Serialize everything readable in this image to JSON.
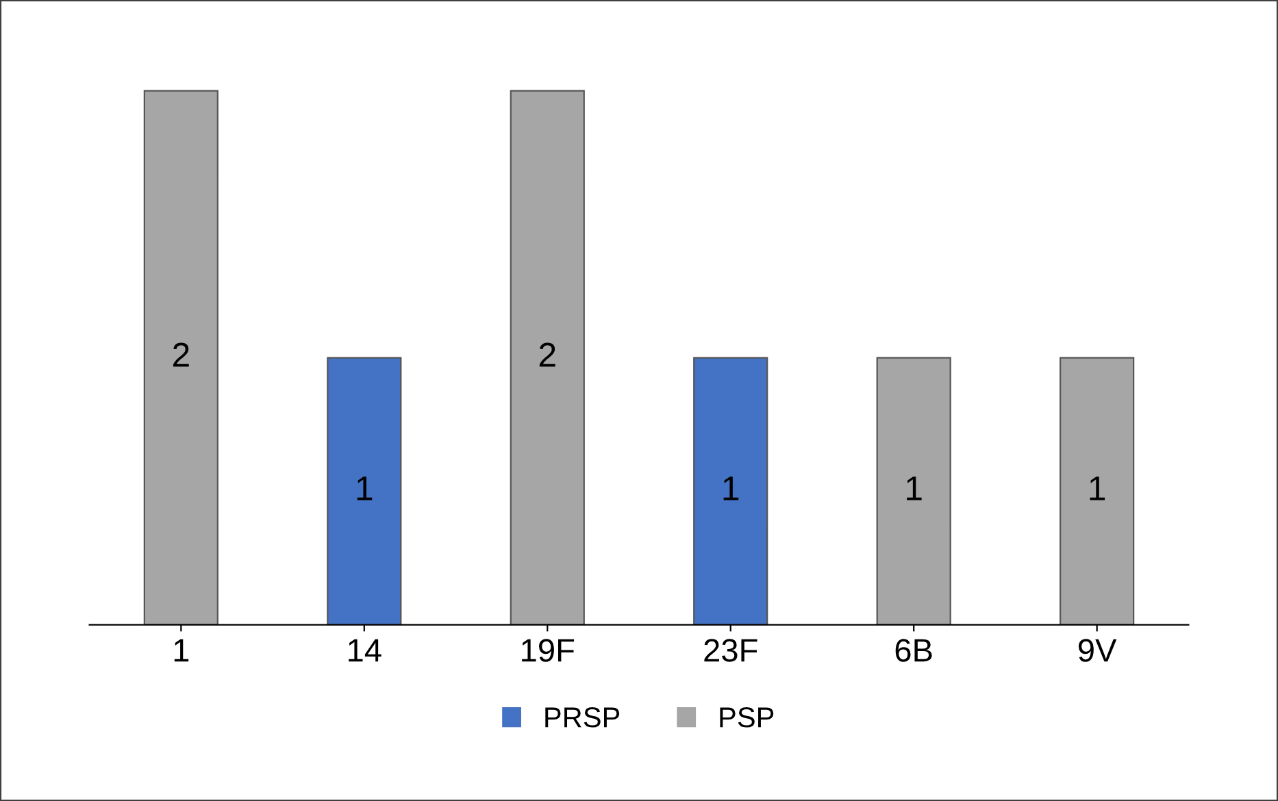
{
  "chart_data": {
    "type": "bar",
    "categories": [
      "1",
      "14",
      "19F",
      "23F",
      "6B",
      "9V"
    ],
    "series": [
      {
        "name": "PRSP",
        "color": "#4472c4",
        "values": [
          null,
          1,
          null,
          1,
          null,
          null
        ]
      },
      {
        "name": "PSP",
        "color": "#a6a6a6",
        "values": [
          2,
          null,
          2,
          null,
          1,
          1
        ]
      }
    ],
    "data_labels": true,
    "legend": "bottom",
    "grid": false
  }
}
